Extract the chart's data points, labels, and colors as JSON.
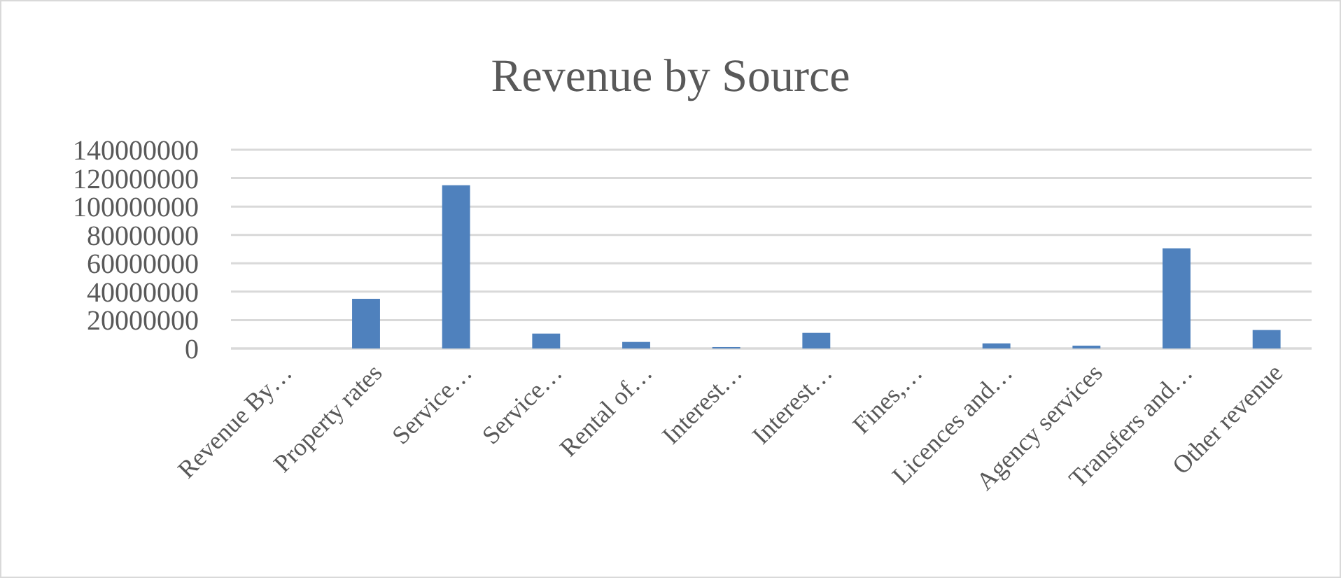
{
  "chart_data": {
    "type": "bar",
    "title": "Revenue by Source",
    "categories": [
      "Revenue By…",
      "Property rates",
      "Service…",
      "Service…",
      "Rental of…",
      "Interest…",
      "Interest…",
      "Fines,…",
      "Licences and…",
      "Agency services",
      "Transfers and…",
      "Other revenue"
    ],
    "values": [
      0,
      35000000,
      115000000,
      10500000,
      4600000,
      1000000,
      11000000,
      0,
      3600000,
      2000000,
      70500000,
      13000000
    ],
    "color": "#4f81bd",
    "ylim": [
      0,
      140000000
    ],
    "yticks": [
      0,
      20000000,
      40000000,
      60000000,
      80000000,
      100000000,
      120000000,
      140000000
    ],
    "grid": true
  }
}
